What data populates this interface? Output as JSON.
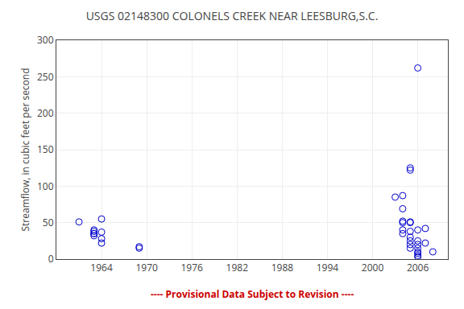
{
  "chart_data": {
    "type": "scatter",
    "title": "USGS 02148300 COLONELS CREEK NEAR LEESBURG,S.C.",
    "ylabel": "Streamflow, in cubic feet per second",
    "x": [
      1961,
      1963,
      1963,
      1963,
      1963,
      1963,
      1964,
      1964,
      1964,
      1964,
      1969,
      1969,
      2003,
      2004,
      2004,
      2004,
      2004,
      2004,
      2004,
      2005,
      2005,
      2005,
      2005,
      2005,
      2005,
      2005,
      2005,
      2005,
      2006,
      2006,
      2006,
      2006,
      2006,
      2006,
      2006,
      2006,
      2006,
      2007,
      2007,
      2008
    ],
    "values": [
      51,
      38,
      35,
      32,
      35,
      40,
      55,
      37,
      28,
      22,
      17,
      15,
      85,
      87,
      69,
      50,
      52,
      40,
      35,
      122,
      125,
      50,
      51,
      38,
      30,
      25,
      20,
      15,
      262,
      40,
      25,
      20,
      15,
      10,
      8,
      5,
      3,
      42,
      22,
      10
    ],
    "color": "#0000cc",
    "marker": "open circle",
    "xlim": [
      1958,
      2010
    ],
    "ylim": [
      0,
      300
    ],
    "xticks": [
      1964,
      1970,
      1976,
      1982,
      1988,
      1994,
      2000,
      2006
    ],
    "yticks": [
      0,
      50,
      100,
      150,
      200,
      250,
      300
    ],
    "grid": true,
    "annotations": [
      {
        "text": "---- Provisional Data Subject to Revision ----",
        "color": "#cc0000"
      }
    ]
  }
}
